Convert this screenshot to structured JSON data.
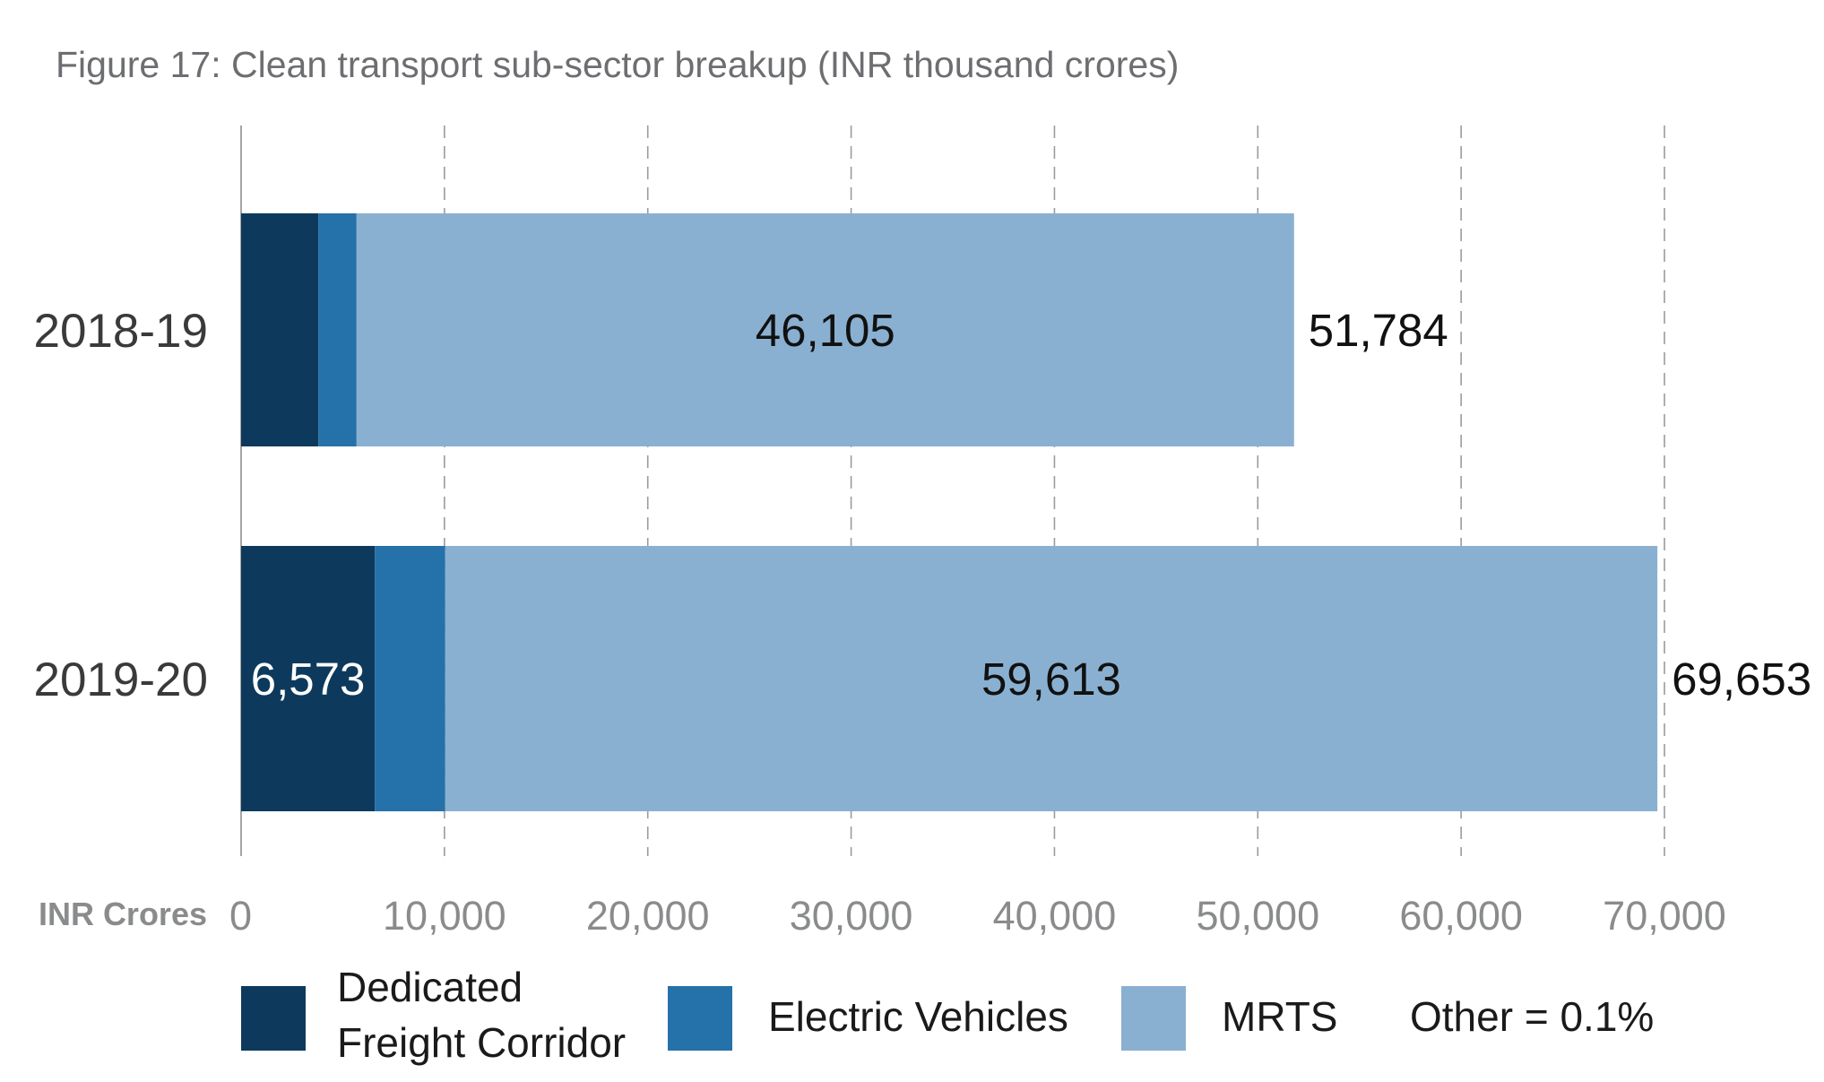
{
  "chart_data": {
    "type": "bar",
    "orientation": "horizontal",
    "stacked": true,
    "title": "Figure 17: Clean transport sub-sector breakup (INR thousand crores)",
    "xlabel": "INR Crores",
    "ylabel": "",
    "xlim": [
      0,
      70000
    ],
    "xticks": [
      0,
      10000,
      20000,
      30000,
      40000,
      50000,
      60000,
      70000
    ],
    "xtick_labels": [
      "0",
      "10,000",
      "20,000",
      "30,000",
      "40,000",
      "50,000",
      "60,000",
      "70,000"
    ],
    "grid": "vertical dashed",
    "legend_position": "bottom",
    "categories": [
      "2018-19",
      "2019-20"
    ],
    "series": [
      {
        "name": "Dedicated Freight Corridor",
        "color": "#0d3a5c",
        "label_color": "#ffffff",
        "values": [
          3800,
          6573
        ],
        "labels": [
          "",
          "6,573"
        ]
      },
      {
        "name": "Electric Vehicles",
        "color": "#2571aa",
        "label_color": "#ffffff",
        "values": [
          1879,
          3467
        ],
        "labels": [
          "",
          ""
        ]
      },
      {
        "name": "MRTS",
        "color": "#8ab0d1",
        "label_color": "#111111",
        "values": [
          46105,
          59613
        ],
        "labels": [
          "46,105",
          "59,613"
        ]
      }
    ],
    "totals": [
      51784,
      69653
    ],
    "total_labels": [
      "51,784",
      "69,653"
    ],
    "legend": [
      {
        "name_lines": [
          "Dedicated",
          "Freight Corridor"
        ],
        "color": "#0d3a5c"
      },
      {
        "name_lines": [
          "Electric Vehicles"
        ],
        "color": "#2571aa"
      },
      {
        "name_lines": [
          "MRTS"
        ],
        "color": "#8ab0d1"
      }
    ],
    "legend_note": "Other = 0.1%"
  }
}
